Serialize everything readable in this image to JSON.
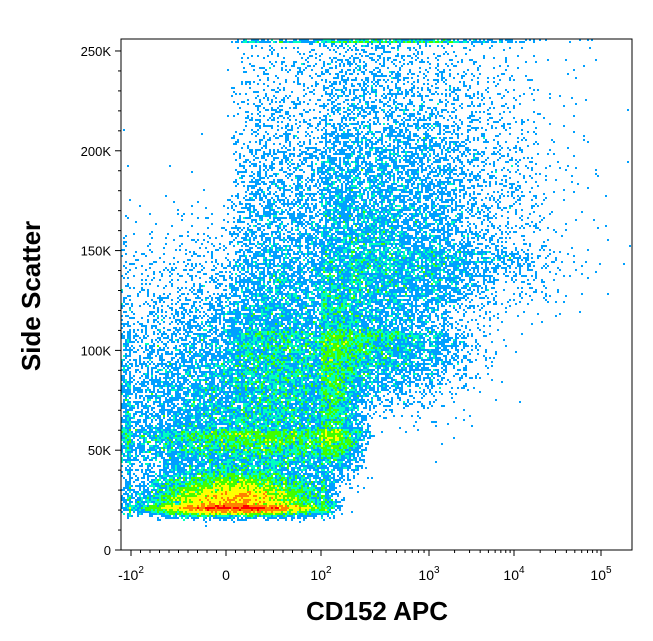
{
  "chart_data": {
    "type": "scatter",
    "subtype": "flow-cytometry-density-dot-plot",
    "title": "",
    "xlabel": "CD152 APC",
    "ylabel": "Side Scatter",
    "x_scale": "biexponential",
    "y_scale": "linear",
    "xlim": [
      -150,
      150000
    ],
    "ylim": [
      0,
      256000
    ],
    "grid": false,
    "legend": "none",
    "y_ticks": [
      {
        "value": 0,
        "label": "0"
      },
      {
        "value": 50000,
        "label": "50K"
      },
      {
        "value": 100000,
        "label": "100K"
      },
      {
        "value": 150000,
        "label": "150K"
      },
      {
        "value": 200000,
        "label": "200K"
      },
      {
        "value": 250000,
        "label": "250K"
      }
    ],
    "x_ticks": [
      {
        "value": -100,
        "base": "-10",
        "exp": "2"
      },
      {
        "value": 0,
        "base": "0",
        "exp": ""
      },
      {
        "value": 100,
        "base": "10",
        "exp": "2"
      },
      {
        "value": 1000,
        "base": "10",
        "exp": "3"
      },
      {
        "value": 10000,
        "base": "10",
        "exp": "4"
      },
      {
        "value": 100000,
        "base": "10",
        "exp": "5"
      }
    ],
    "density_colors": [
      "#0000ff",
      "#00a0ff",
      "#00ffc0",
      "#40ff00",
      "#ffff00",
      "#ff8000",
      "#ff0000"
    ],
    "populations": [
      {
        "x_center": 10,
        "x_spread": 45,
        "y_center": 22000,
        "y_spread": 9000,
        "weight": 0.32
      },
      {
        "x_center": 40,
        "x_spread": 80,
        "y_center": 60000,
        "y_spread": 40000,
        "weight": 0.33
      },
      {
        "x_center": 200,
        "x_spread": 1,
        "y_center": 110000,
        "y_spread": 70000,
        "weight": 0.25
      },
      {
        "x_center": 800,
        "x_spread": 1.5,
        "y_center": 150000,
        "y_spread": 60000,
        "weight": 0.1
      }
    ]
  }
}
